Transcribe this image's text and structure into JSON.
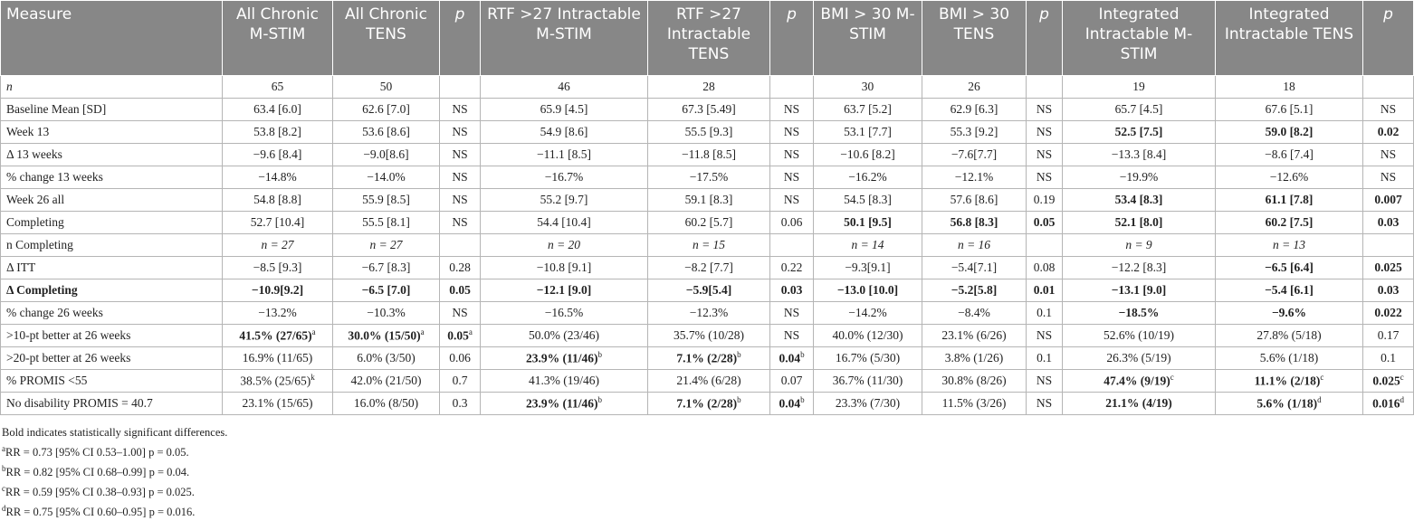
{
  "table": {
    "header": [
      {
        "text": "Measure"
      },
      {
        "text": "All Chronic M-STIM"
      },
      {
        "text": "All Chronic TENS"
      },
      {
        "text": "p",
        "italic": true
      },
      {
        "text": "RTF >27 Intractable M-STIM"
      },
      {
        "text": "RTF >27 Intractable TENS"
      },
      {
        "text": "p",
        "italic": true
      },
      {
        "text": "BMI > 30 M-STIM"
      },
      {
        "text": "BMI > 30 TENS"
      },
      {
        "text": "p",
        "italic": true
      },
      {
        "text": "Integrated Intractable M-STIM"
      },
      {
        "text": "Integrated Intractable TENS"
      },
      {
        "text": "p",
        "italic": true
      }
    ],
    "rows": [
      [
        {
          "text": "n",
          "italic": true
        },
        "65",
        "50",
        null,
        "46",
        "28",
        null,
        "30",
        "26",
        null,
        "19",
        "18",
        null
      ],
      [
        "Baseline Mean [SD]",
        "63.4 [6.0]",
        "62.6 [7.0]",
        "NS",
        "65.9 [4.5]",
        "67.3 [5.49]",
        "NS",
        "63.7 [5.2]",
        "62.9 [6.3]",
        "NS",
        "65.7 [4.5]",
        "67.6 [5.1]",
        "NS"
      ],
      [
        "Week 13",
        "53.8 [8.2]",
        "53.6 [8.6]",
        "NS",
        "54.9 [8.6]",
        "55.5 [9.3]",
        "NS",
        "53.1 [7.7]",
        "55.3 [9.2]",
        "NS",
        {
          "text": "52.5 [7.5]",
          "bold": true
        },
        {
          "text": "59.0 [8.2]",
          "bold": true
        },
        {
          "text": "0.02",
          "bold": true
        }
      ],
      [
        "Δ 13 weeks",
        "−9.6 [8.4]",
        "−9.0[8.6]",
        "NS",
        "−11.1 [8.5]",
        "−11.8 [8.5]",
        "NS",
        "−10.6 [8.2]",
        "−7.6[7.7]",
        "NS",
        "−13.3 [8.4]",
        "−8.6 [7.4]",
        "NS"
      ],
      [
        "% change 13 weeks",
        "−14.8%",
        "−14.0%",
        "NS",
        "−16.7%",
        "−17.5%",
        "NS",
        "−16.2%",
        "−12.1%",
        "NS",
        "−19.9%",
        "−12.6%",
        "NS"
      ],
      [
        "Week 26 all",
        "54.8 [8.8]",
        "55.9 [8.5]",
        "NS",
        "55.2 [9.7]",
        "59.1 [8.3]",
        "NS",
        "54.5 [8.3]",
        "57.6 [8.6]",
        "0.19",
        {
          "text": "53.4 [8.3]",
          "bold": true
        },
        {
          "text": "61.1 [7.8]",
          "bold": true
        },
        {
          "text": "0.007",
          "bold": true
        }
      ],
      [
        "Completing",
        "52.7 [10.4]",
        "55.5 [8.1]",
        "NS",
        "54.4 [10.4]",
        "60.2 [5.7]",
        "0.06",
        {
          "text": "50.1 [9.5]",
          "bold": true
        },
        {
          "text": "56.8 [8.3]",
          "bold": true
        },
        {
          "text": "0.05",
          "bold": true
        },
        {
          "text": "52.1 [8.0]",
          "bold": true
        },
        {
          "text": "60.2 [7.5]",
          "bold": true
        },
        {
          "text": "0.03",
          "bold": true
        }
      ],
      [
        "n Completing",
        {
          "text": "n = 27",
          "italic": true
        },
        {
          "text": "n = 27",
          "italic": true
        },
        null,
        {
          "text": "n = 20",
          "italic": true
        },
        {
          "text": "n = 15",
          "italic": true
        },
        null,
        {
          "text": "n = 14",
          "italic": true
        },
        {
          "text": "n = 16",
          "italic": true
        },
        null,
        {
          "text": "n = 9",
          "italic": true
        },
        {
          "text": "n = 13",
          "italic": true
        },
        null
      ],
      [
        "Δ ITT",
        "−8.5 [9.3]",
        "−6.7 [8.3]",
        "0.28",
        "−10.8 [9.1]",
        "−8.2 [7.7]",
        "0.22",
        "−9.3[9.1]",
        "−5.4[7.1]",
        "0.08",
        "−12.2 [8.3]",
        {
          "text": "−6.5 [6.4]",
          "bold": true
        },
        {
          "text": "0.025",
          "bold": true
        }
      ],
      [
        {
          "text": "Δ Completing",
          "bold": true
        },
        {
          "text": "−10.9[9.2]",
          "bold": true
        },
        {
          "text": "−6.5 [7.0]",
          "bold": true
        },
        {
          "text": "0.05",
          "bold": true
        },
        {
          "text": "−12.1 [9.0]",
          "bold": true
        },
        {
          "text": "−5.9[5.4]",
          "bold": true
        },
        {
          "text": "0.03",
          "bold": true
        },
        {
          "text": "−13.0 [10.0]",
          "bold": true
        },
        {
          "text": "−5.2[5.8]",
          "bold": true
        },
        {
          "text": "0.01",
          "bold": true
        },
        {
          "text": "−13.1 [9.0]",
          "bold": true
        },
        {
          "text": "−5.4 [6.1]",
          "bold": true
        },
        {
          "text": "0.03",
          "bold": true
        }
      ],
      [
        "% change 26 weeks",
        "−13.2%",
        "−10.3%",
        "NS",
        "−16.5%",
        "−12.3%",
        "NS",
        "−14.2%",
        "−8.4%",
        "0.1",
        {
          "text": "−18.5%",
          "bold": true
        },
        {
          "text": "−9.6%",
          "bold": true
        },
        {
          "text": "0.022",
          "bold": true
        }
      ],
      [
        ">10-pt better at 26 weeks",
        {
          "text": "41.5% (27/65)",
          "bold": true,
          "sup": "a"
        },
        {
          "text": "30.0% (15/50)",
          "bold": true,
          "sup": "a"
        },
        {
          "text": "0.05",
          "bold": true,
          "sup": "a"
        },
        "50.0% (23/46)",
        "35.7% (10/28)",
        "NS",
        "40.0% (12/30)",
        "23.1% (6/26)",
        "NS",
        "52.6% (10/19)",
        "27.8% (5/18)",
        "0.17"
      ],
      [
        ">20-pt better at 26 weeks",
        "16.9% (11/65)",
        "6.0% (3/50)",
        "0.06",
        {
          "text": "23.9% (11/46)",
          "bold": true,
          "sup": "b"
        },
        {
          "text": "7.1% (2/28)",
          "bold": true,
          "sup": "b"
        },
        {
          "text": "0.04",
          "bold": true,
          "sup": "b"
        },
        "16.7% (5/30)",
        "3.8% (1/26)",
        "0.1",
        "26.3% (5/19)",
        "5.6% (1/18)",
        "0.1"
      ],
      [
        "% PROMIS <55",
        {
          "text": "38.5% (25/65)",
          "sup": "k"
        },
        "42.0% (21/50)",
        "0.7",
        "41.3% (19/46)",
        "21.4% (6/28)",
        "0.07",
        "36.7% (11/30)",
        "30.8% (8/26)",
        "NS",
        {
          "text": "47.4% (9/19)",
          "bold": true,
          "sup": "c"
        },
        {
          "text": "11.1% (2/18)",
          "bold": true,
          "sup": "c"
        },
        {
          "text": "0.025",
          "bold": true,
          "sup": "c"
        }
      ],
      [
        "No disability PROMIS = 40.7",
        "23.1% (15/65)",
        "16.0% (8/50)",
        "0.3",
        {
          "text": "23.9% (11/46)",
          "bold": true,
          "sup": "b"
        },
        {
          "text": "7.1% (2/28)",
          "bold": true,
          "sup": "b"
        },
        {
          "text": "0.04",
          "bold": true,
          "sup": "b"
        },
        "23.3% (7/30)",
        "11.5% (3/26)",
        "NS",
        {
          "text": "21.1% (4/19)",
          "bold": true
        },
        {
          "text": "5.6% (1/18)",
          "bold": true,
          "sup": "d"
        },
        {
          "text": "0.016",
          "bold": true,
          "sup": "d"
        }
      ]
    ]
  },
  "footnotes": [
    {
      "text": "Bold indicates statistically significant differences."
    },
    {
      "sup": "a",
      "text": "RR = 0.73 [95% CI 0.53–1.00] p = 0.05."
    },
    {
      "sup": "b",
      "text": "RR = 0.82 [95% CI 0.68–0.99] p = 0.04."
    },
    {
      "sup": "c",
      "text": "RR = 0.59 [95% CI 0.38–0.93] p = 0.025."
    },
    {
      "sup": "d",
      "text": "RR = 0.75 [95% CI 0.60–0.95] p = 0.016."
    }
  ]
}
